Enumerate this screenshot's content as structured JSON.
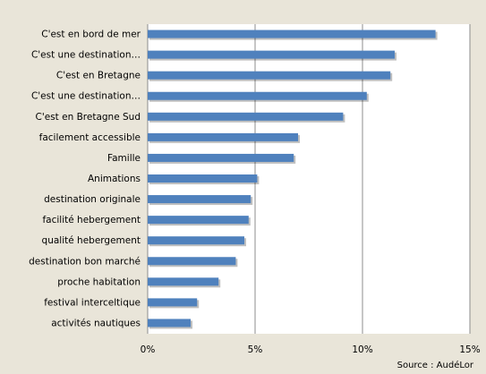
{
  "chart_data": {
    "type": "bar",
    "orientation": "horizontal",
    "categories": [
      "C'est en bord de mer",
      "C'est une destination…",
      "C'est en Bretagne",
      "C'est une destination…",
      "C'est en Bretagne Sud",
      "facilement accessible",
      "Famille",
      "Animations",
      "destination originale",
      "facilité hebergement",
      "qualité hebergement",
      "destination bon marché",
      "proche habitation",
      "festival interceltique",
      "activités nautiques"
    ],
    "values": [
      13.4,
      11.5,
      11.3,
      10.2,
      9.1,
      7.0,
      6.8,
      5.1,
      4.8,
      4.7,
      4.5,
      4.1,
      3.3,
      2.3,
      2.0
    ],
    "color": "#4f81bd",
    "xlim": [
      0,
      15
    ],
    "xticks": [
      {
        "value": 0,
        "label": "0%"
      },
      {
        "value": 5,
        "label": "5%"
      },
      {
        "value": 10,
        "label": "10%"
      },
      {
        "value": 15,
        "label": "15%"
      }
    ],
    "grid": true,
    "source": "Source : AudéLor"
  }
}
